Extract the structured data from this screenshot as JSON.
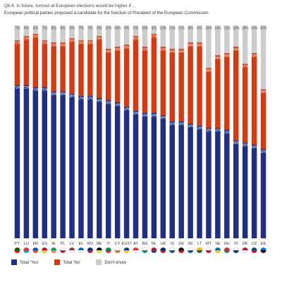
{
  "question": "Q6.6. In future, turnout at European elections would be higher if ...",
  "statement": "European political parties proposed a candidate  for the function of President of the European Commission",
  "colors": {
    "yes": "#1f2f86",
    "no": "#d9390f",
    "dont_know": "#cccccc"
  },
  "chart_data": {
    "type": "bar",
    "stacked": true,
    "categories": [
      "PT",
      "LU",
      "FR",
      "ES",
      "IE",
      "PL",
      "LV",
      "EL",
      "RO",
      "BE",
      "IT",
      "CY",
      "EU27",
      "AT",
      "BG",
      "NL",
      "UK",
      "SI",
      "DE",
      "SK",
      "LT",
      "MT",
      "SE",
      "HU",
      "FI",
      "DK",
      "CZ",
      "EE"
    ],
    "flags": [
      "flag-PT",
      "flag-LU",
      "flag-FR",
      "flag-ES",
      "flag-IE",
      "flag-PL",
      "flag-LV",
      "flag-EL",
      "flag-RO",
      "flag-BE",
      "flag-IT",
      "flag-CY",
      "flag-EU27",
      "flag-AT",
      "flag-BG",
      "flag-NL",
      "flag-UK",
      "flag-SI",
      "flag-DE",
      "flag-SK",
      "flag-LT",
      "flag-MT",
      "flag-SE",
      "flag-HU",
      "flag-FI",
      "flag-DK",
      "flag-CZ",
      "flag-EE"
    ],
    "series": [
      {
        "name": "Total 'Yes'",
        "values": [
          72,
          72,
          71,
          71,
          69,
          69,
          68,
          67,
          67,
          66,
          65,
          64,
          62,
          60,
          59,
          59,
          58,
          55,
          55,
          54,
          53,
          52,
          52,
          51,
          46,
          45,
          44,
          42
        ]
      },
      {
        "name": "Total 'No'",
        "values": [
          21,
          23,
          25,
          22,
          23,
          23,
          26,
          26,
          26,
          29,
          24,
          26,
          29,
          35,
          31,
          37,
          32,
          34,
          34,
          38,
          39,
          28,
          34,
          36,
          44,
          37,
          43,
          28
        ]
      },
      {
        "name": "Don't know",
        "values": [
          7,
          5,
          4,
          7,
          8,
          8,
          6,
          7,
          7,
          5,
          11,
          10,
          9,
          5,
          10,
          4,
          10,
          11,
          11,
          8,
          8,
          20,
          14,
          13,
          10,
          18,
          13,
          30
        ]
      }
    ],
    "ylim": [
      0,
      100
    ],
    "legend_position": "bottom-left",
    "grid": false
  }
}
